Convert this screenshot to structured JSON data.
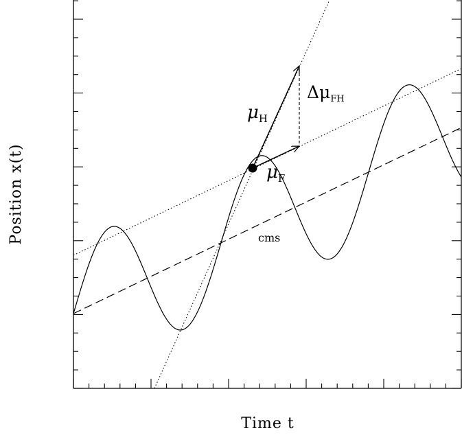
{
  "chart_data": {
    "type": "line",
    "title": "",
    "xlabel": "Time t",
    "ylabel": "Position x(t)",
    "grid": false,
    "series": [],
    "annotations": {
      "mu_h": {
        "symbol": "μ",
        "sub": "H"
      },
      "mu_f": {
        "symbol": "μ",
        "sub": "F"
      },
      "delta_mu_fh": {
        "symbol": "Δμ",
        "sub": "FH"
      },
      "cms": "cms"
    }
  }
}
